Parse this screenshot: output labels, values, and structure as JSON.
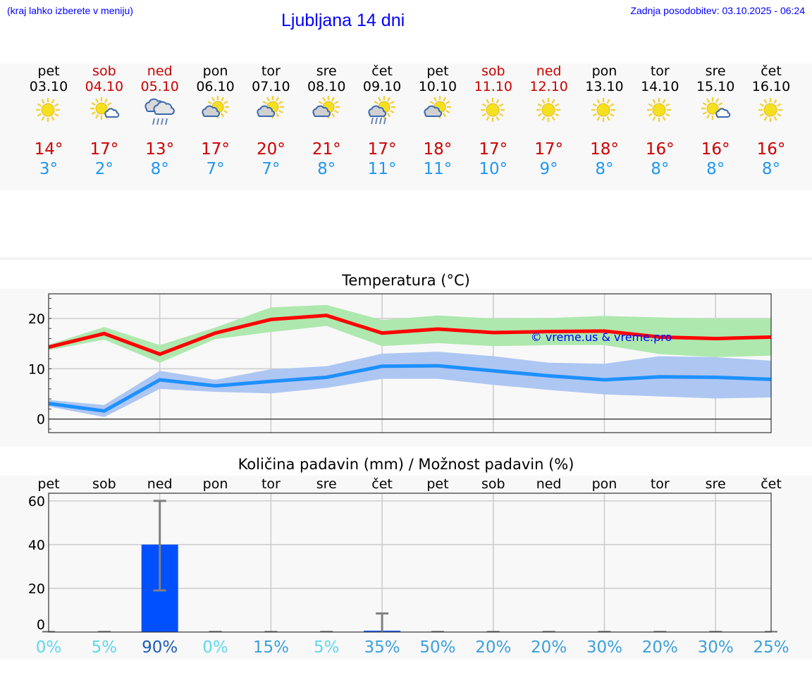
{
  "header": {
    "note": "(kraj lahko izberete v meniju)",
    "title": "Ljubljana 14 dni",
    "updated": "Zadnja posodobitev: 03.10.2025 - 06:24"
  },
  "days": [
    {
      "name": "pet",
      "date": "03.10",
      "weekend": false,
      "icon": "sun",
      "max": "14°",
      "min": "3°"
    },
    {
      "name": "sob",
      "date": "04.10",
      "weekend": true,
      "icon": "sun-small-cloud",
      "max": "17°",
      "min": "2°"
    },
    {
      "name": "ned",
      "date": "05.10",
      "weekend": true,
      "icon": "rain-cloud",
      "max": "13°",
      "min": "8°"
    },
    {
      "name": "pon",
      "date": "06.10",
      "weekend": false,
      "icon": "partly-cloudy",
      "max": "17°",
      "min": "7°"
    },
    {
      "name": "tor",
      "date": "07.10",
      "weekend": false,
      "icon": "partly-cloudy",
      "max": "20°",
      "min": "7°"
    },
    {
      "name": "sre",
      "date": "08.10",
      "weekend": false,
      "icon": "partly-cloudy",
      "max": "21°",
      "min": "8°"
    },
    {
      "name": "čet",
      "date": "09.10",
      "weekend": false,
      "icon": "partly-cloudy-rain",
      "max": "17°",
      "min": "11°"
    },
    {
      "name": "pet",
      "date": "10.10",
      "weekend": false,
      "icon": "partly-cloudy",
      "max": "18°",
      "min": "11°"
    },
    {
      "name": "sob",
      "date": "11.10",
      "weekend": true,
      "icon": "sun",
      "max": "17°",
      "min": "10°"
    },
    {
      "name": "ned",
      "date": "12.10",
      "weekend": true,
      "icon": "sun",
      "max": "17°",
      "min": "9°"
    },
    {
      "name": "pon",
      "date": "13.10",
      "weekend": false,
      "icon": "sun",
      "max": "18°",
      "min": "8°"
    },
    {
      "name": "tor",
      "date": "14.10",
      "weekend": false,
      "icon": "sun",
      "max": "16°",
      "min": "8°"
    },
    {
      "name": "sre",
      "date": "15.10",
      "weekend": false,
      "icon": "sun-small-cloud",
      "max": "16°",
      "min": "8°"
    },
    {
      "name": "čet",
      "date": "16.10",
      "weekend": false,
      "icon": "sun",
      "max": "16°",
      "min": "8°"
    }
  ],
  "colors": {
    "max": "#ff0000",
    "max_band": "#aee8ae",
    "min": "#1e90ff",
    "min_band": "#aec6f2",
    "bar": "#0050ff",
    "error": "#808080",
    "prob_low": "#5ed8ec",
    "prob_mid": "#3ca0dc",
    "prob_high": "#1c5cb8"
  },
  "chart_data": [
    {
      "type": "line",
      "title": "Temperatura (°C)",
      "watermark": "© vreme.us & vreme.pro",
      "x": [
        0,
        1,
        2,
        3,
        4,
        5,
        6,
        7,
        8,
        9,
        10,
        11,
        12,
        13
      ],
      "ylim": [
        -2.7,
        24.9
      ],
      "yticks": [
        0,
        10,
        20
      ],
      "grid": true,
      "series": [
        {
          "role": "max",
          "values": [
            14.3,
            17.0,
            12.9,
            17.1,
            19.8,
            20.6,
            17.1,
            17.9,
            17.2,
            17.4,
            17.5,
            16.3,
            16.0,
            16.3
          ],
          "upper": [
            14.8,
            18.3,
            14.7,
            18.2,
            22.2,
            22.7,
            19.7,
            20.6,
            20.0,
            20.1,
            20.5,
            20.2,
            20.0,
            20.0
          ],
          "lower": [
            13.7,
            15.8,
            11.2,
            15.9,
            17.3,
            18.5,
            14.5,
            15.1,
            14.5,
            14.7,
            14.7,
            12.9,
            12.3,
            12.6
          ]
        },
        {
          "role": "min",
          "values": [
            3.1,
            1.6,
            7.8,
            6.6,
            7.5,
            8.3,
            10.5,
            10.6,
            9.6,
            8.6,
            7.8,
            8.4,
            8.3,
            7.9
          ],
          "upper": [
            3.8,
            2.8,
            9.6,
            7.8,
            9.9,
            10.5,
            13.0,
            13.4,
            12.5,
            11.2,
            11.0,
            12.5,
            12.3,
            11.6
          ],
          "lower": [
            2.5,
            0.4,
            6.0,
            5.4,
            5.1,
            6.2,
            8.0,
            8.0,
            6.8,
            5.8,
            4.9,
            4.5,
            4.1,
            4.3
          ]
        }
      ]
    },
    {
      "type": "bar",
      "title": "Količina padavin (mm) / Možnost padavin (%)",
      "categories": [
        "pet",
        "sob",
        "ned",
        "pon",
        "tor",
        "sre",
        "čet",
        "pet",
        "sob",
        "ned",
        "pon",
        "tor",
        "sre",
        "čet"
      ],
      "ylim": [
        0,
        63.5
      ],
      "yticks": [
        0,
        20,
        40,
        60
      ],
      "grid": true,
      "values": [
        0,
        0,
        40,
        0,
        0,
        0,
        0.6,
        0,
        0,
        0,
        0,
        0,
        0,
        0
      ],
      "error_low": [
        0,
        0,
        19,
        0,
        0,
        0,
        0,
        0,
        0,
        0,
        0,
        0,
        0,
        0
      ],
      "error_high": [
        0,
        0,
        60,
        0,
        0,
        0,
        8.5,
        0,
        0,
        0,
        0,
        0,
        0,
        0
      ],
      "probability": [
        "0%",
        "5%",
        "90%",
        "0%",
        "15%",
        "5%",
        "35%",
        "50%",
        "20%",
        "20%",
        "30%",
        "20%",
        "30%",
        "25%"
      ],
      "probability_values": [
        0,
        5,
        90,
        0,
        15,
        5,
        35,
        50,
        20,
        20,
        30,
        20,
        30,
        25
      ]
    }
  ]
}
